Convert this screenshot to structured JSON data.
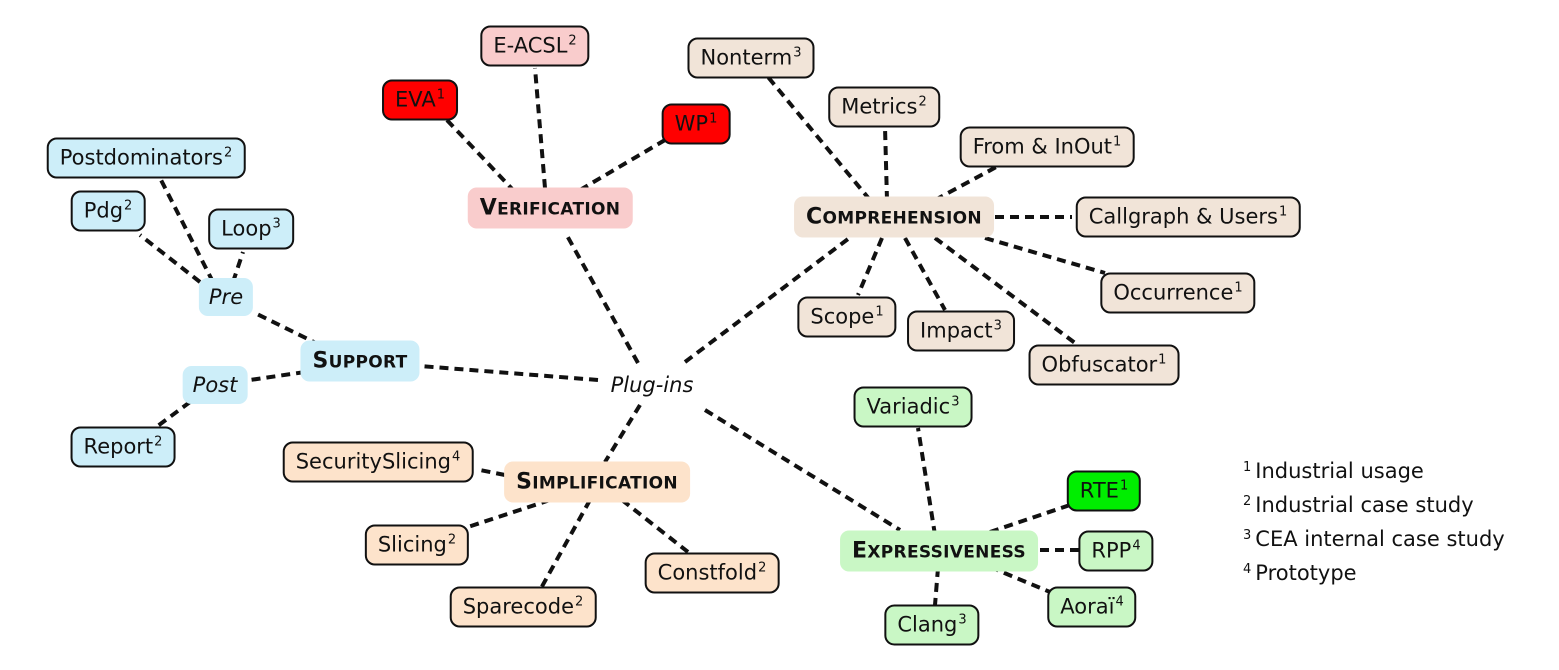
{
  "center": "Plug-ins",
  "categories": {
    "verification": {
      "first": "V",
      "rest": "ERIFICATION"
    },
    "comprehension": {
      "first": "C",
      "rest": "OMPREHENSION"
    },
    "support": {
      "first": "S",
      "rest": "UPPORT"
    },
    "simplification": {
      "first": "S",
      "rest": "IMPLIFICATION"
    },
    "expressiveness": {
      "first": "E",
      "rest": "XPRESSIVENESS"
    }
  },
  "subs": {
    "pre": "Pre",
    "post": "Post"
  },
  "plugins": {
    "eacsl": {
      "label": "E-ACSL",
      "sup": "2"
    },
    "eva": {
      "label": "EVA",
      "sup": "1"
    },
    "wp": {
      "label": "WP",
      "sup": "1"
    },
    "nonterm": {
      "label": "Nonterm",
      "sup": "3"
    },
    "metrics": {
      "label": "Metrics",
      "sup": "2"
    },
    "from_inout": {
      "label": "From & InOut",
      "sup": "1"
    },
    "callgraph": {
      "label": "Callgraph & Users",
      "sup": "1"
    },
    "occurrence": {
      "label": "Occurrence",
      "sup": "1"
    },
    "scope": {
      "label": "Scope",
      "sup": "1"
    },
    "impact": {
      "label": "Impact",
      "sup": "3"
    },
    "obfuscator": {
      "label": "Obfuscator",
      "sup": "1"
    },
    "postdominators": {
      "label": "Postdominators",
      "sup": "2"
    },
    "pdg": {
      "label": "Pdg",
      "sup": "2"
    },
    "loop": {
      "label": "Loop",
      "sup": "3"
    },
    "report": {
      "label": "Report",
      "sup": "2"
    },
    "securityslicing": {
      "label": "SecuritySlicing",
      "sup": "4"
    },
    "slicing": {
      "label": "Slicing",
      "sup": "2"
    },
    "sparecode": {
      "label": "Sparecode",
      "sup": "2"
    },
    "constfold": {
      "label": "Constfold",
      "sup": "2"
    },
    "variadic": {
      "label": "Variadic",
      "sup": "3"
    },
    "rte": {
      "label": "RTE",
      "sup": "1"
    },
    "rpp": {
      "label": "RPP",
      "sup": "4"
    },
    "aorai": {
      "label": "Aoraï",
      "sup": "4"
    },
    "clang": {
      "label": "Clang",
      "sup": "3"
    }
  },
  "legend": [
    {
      "sup": "1",
      "text": "Industrial usage"
    },
    {
      "sup": "2",
      "text": "Industrial case study"
    },
    {
      "sup": "3",
      "text": "CEA internal case study"
    },
    {
      "sup": "4",
      "text": "Prototype"
    }
  ],
  "colors": {
    "verification_bg": "#f9cccc",
    "comprehension_bg": "#f1e4d8",
    "support_bg": "#cdeef9",
    "simplification_bg": "#fde3cb",
    "expressiveness_bg": "#c9f7c5",
    "industrial_red": "#ff0000",
    "industrial_green": "#00ee00"
  }
}
